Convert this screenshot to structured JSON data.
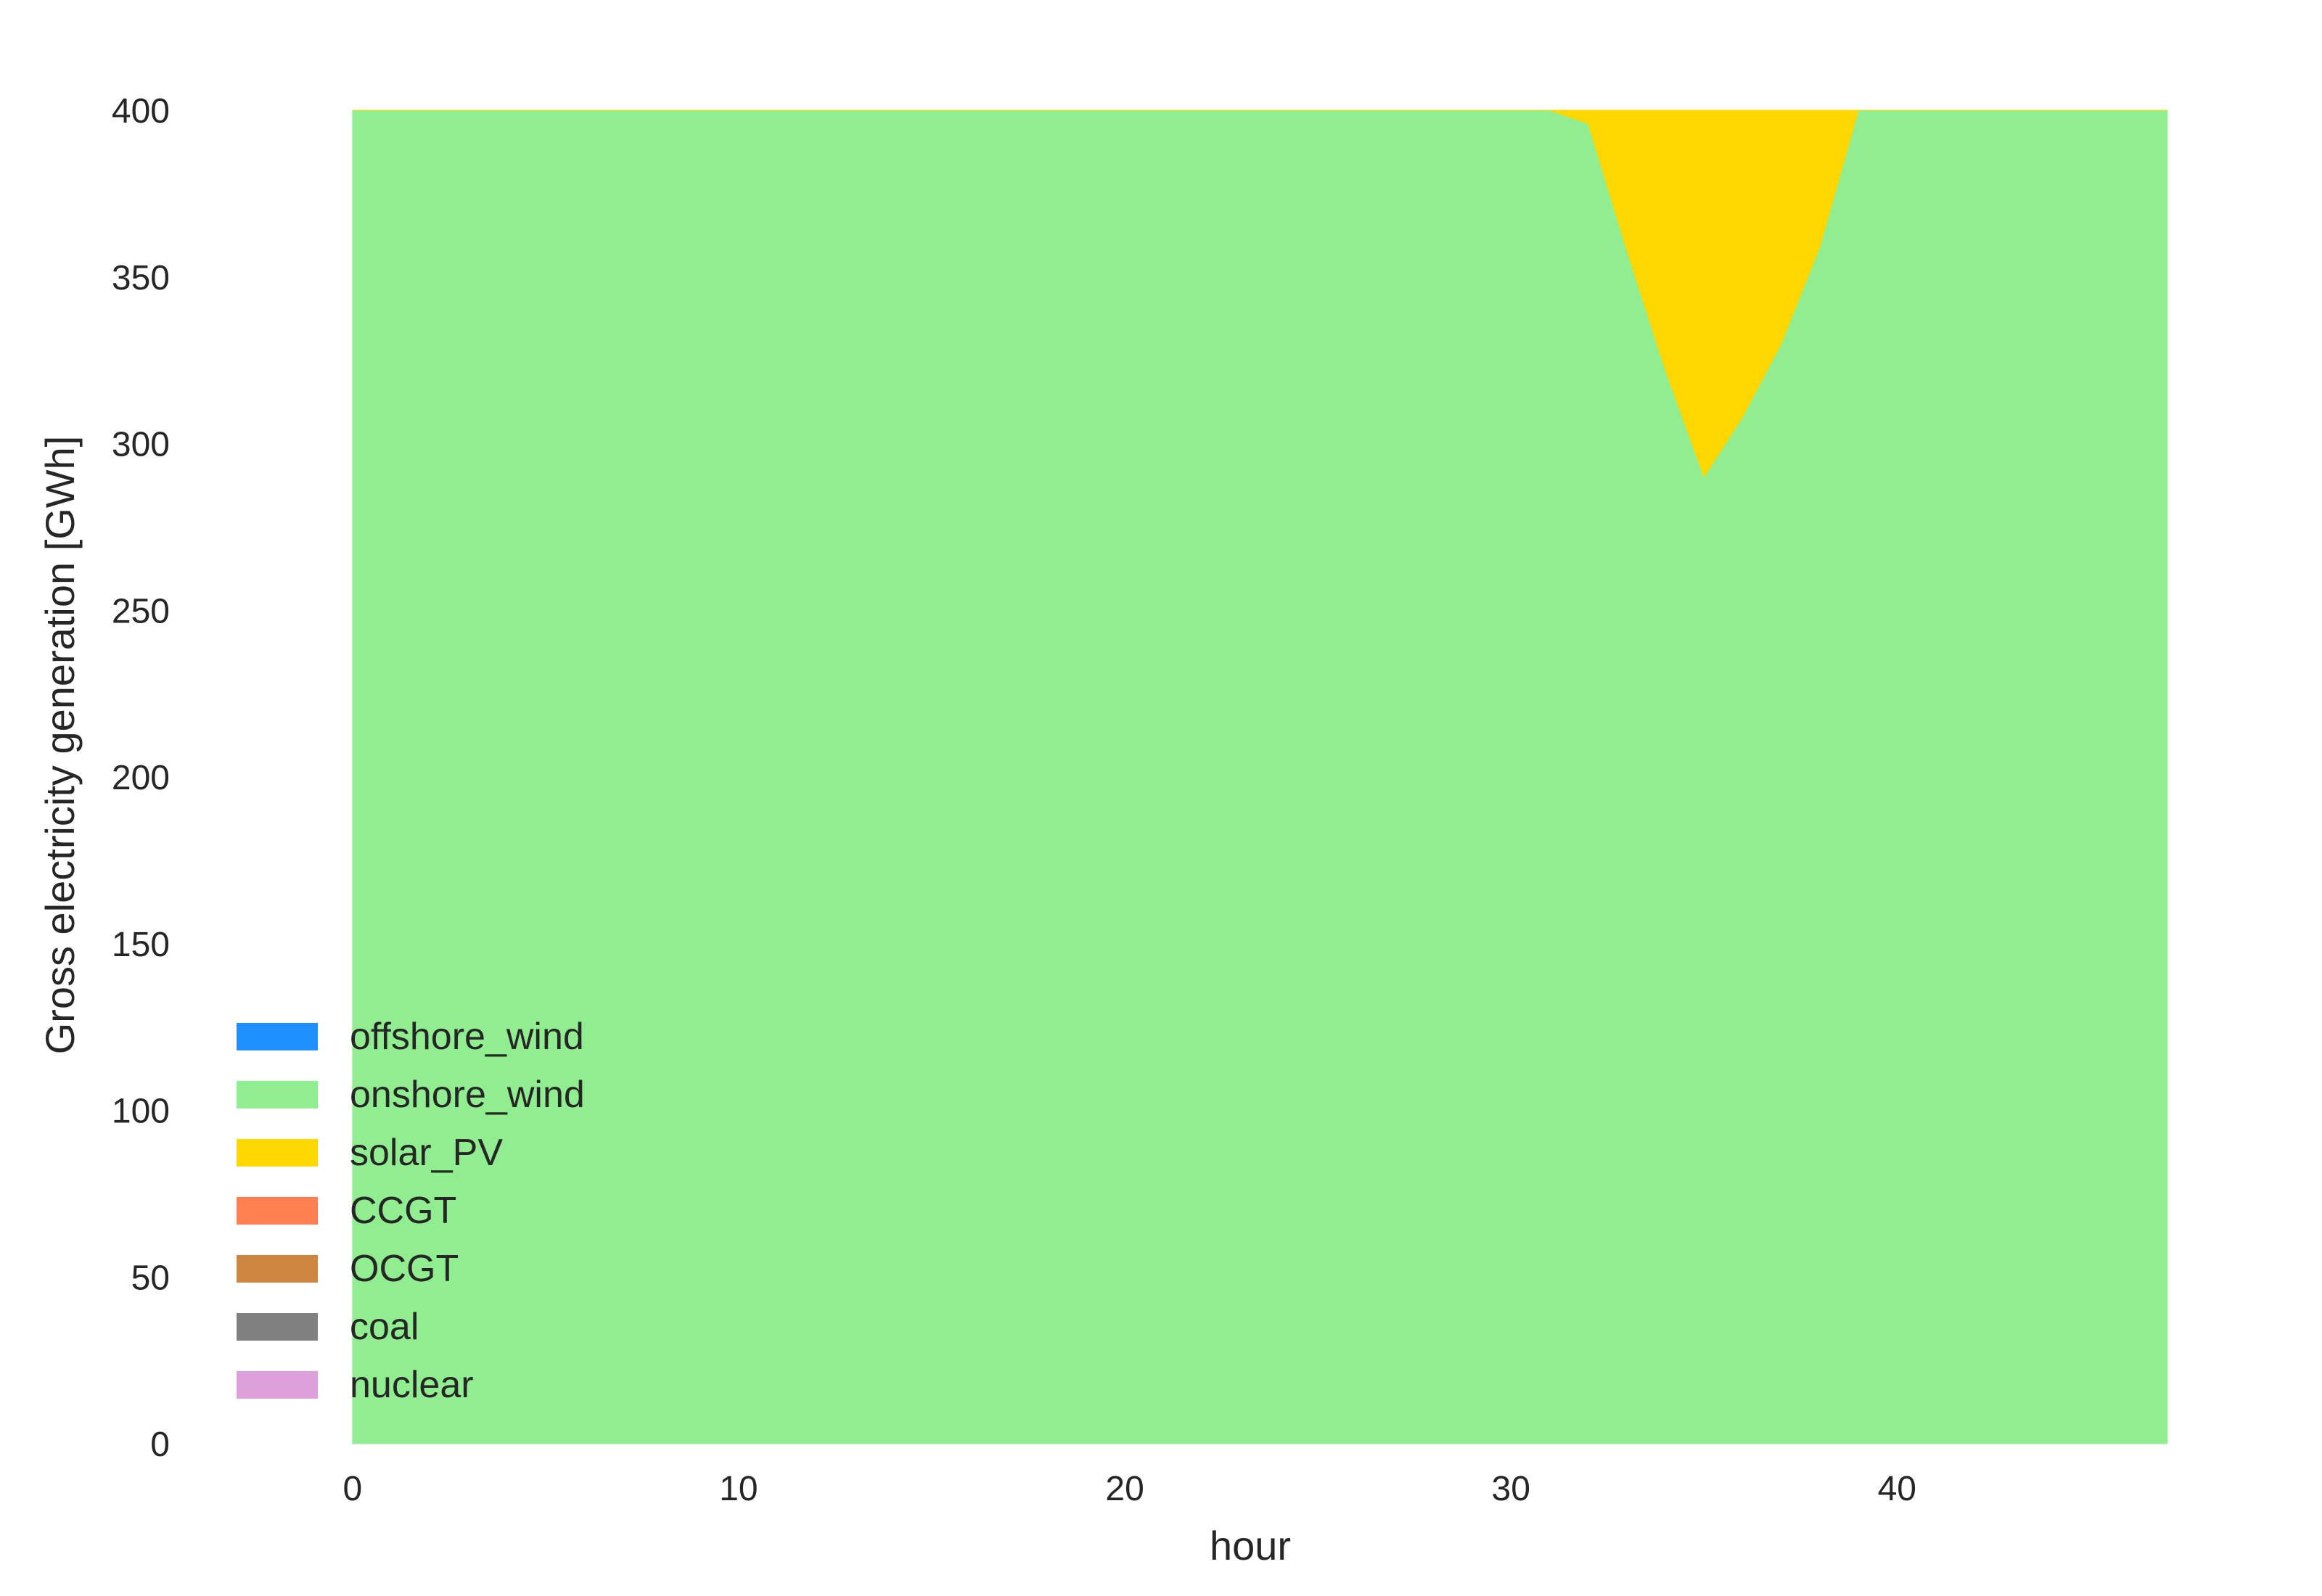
{
  "chart_data": {
    "type": "area",
    "stacked": true,
    "title": "",
    "xlabel": "hour",
    "ylabel": "Gross electricity generation [GWh]",
    "xlim": [
      0,
      47
    ],
    "ylim": [
      0,
      400
    ],
    "xticks": [
      0,
      10,
      20,
      30,
      40
    ],
    "yticks": [
      0,
      50,
      100,
      150,
      200,
      250,
      300,
      350,
      400
    ],
    "grid": false,
    "legend_position": "lower-left",
    "x": [
      0,
      1,
      2,
      3,
      4,
      5,
      6,
      7,
      8,
      9,
      10,
      11,
      12,
      13,
      14,
      15,
      16,
      17,
      18,
      19,
      20,
      21,
      22,
      23,
      24,
      25,
      26,
      27,
      28,
      29,
      30,
      31,
      32,
      33,
      34,
      35,
      36,
      37,
      38,
      39,
      40,
      41,
      42,
      43,
      44,
      45,
      46,
      47
    ],
    "series": [
      {
        "name": "offshore_wind",
        "color": "#1E90FF",
        "values": [
          0,
          0,
          0,
          0,
          0,
          0,
          0,
          0,
          0,
          0,
          0,
          0,
          0,
          0,
          0,
          0,
          0,
          0,
          0,
          0,
          0,
          0,
          0,
          0,
          0,
          0,
          0,
          0,
          0,
          0,
          0,
          0,
          0,
          0,
          0,
          0,
          0,
          0,
          0,
          0,
          0,
          0,
          0,
          0,
          0,
          0,
          0,
          0
        ]
      },
      {
        "name": "onshore_wind",
        "color": "#90EE90",
        "values": [
          400,
          400,
          400,
          400,
          400,
          400,
          400,
          400,
          400,
          400,
          400,
          400,
          400,
          400,
          400,
          400,
          400,
          400,
          400,
          400,
          400,
          400,
          400,
          400,
          400,
          400,
          400,
          400,
          400,
          400,
          400,
          400,
          396,
          358,
          322,
          290,
          308,
          330,
          359,
          400,
          400,
          400,
          400,
          400,
          400,
          400,
          400,
          400
        ]
      },
      {
        "name": "solar_PV",
        "color": "#FFD700",
        "values": [
          0,
          0,
          0,
          0,
          0,
          0,
          0,
          0,
          0,
          0,
          0,
          0,
          0,
          0,
          0,
          0,
          0,
          0,
          0,
          0,
          0,
          0,
          0,
          0,
          0,
          0,
          0,
          0,
          0,
          0,
          0,
          0,
          4,
          42,
          78,
          110,
          92,
          70,
          41,
          0,
          0,
          0,
          0,
          0,
          0,
          0,
          0,
          0
        ]
      },
      {
        "name": "CCGT",
        "color": "#FF7F50",
        "values": [
          0,
          0,
          0,
          0,
          0,
          0,
          0,
          0,
          0,
          0,
          0,
          0,
          0,
          0,
          0,
          0,
          0,
          0,
          0,
          0,
          0,
          0,
          0,
          0,
          0,
          0,
          0,
          0,
          0,
          0,
          0,
          0,
          0,
          0,
          0,
          0,
          0,
          0,
          0,
          0,
          0,
          0,
          0,
          0,
          0,
          0,
          0,
          0
        ]
      },
      {
        "name": "OCGT",
        "color": "#CD853F",
        "values": [
          0,
          0,
          0,
          0,
          0,
          0,
          0,
          0,
          0,
          0,
          0,
          0,
          0,
          0,
          0,
          0,
          0,
          0,
          0,
          0,
          0,
          0,
          0,
          0,
          0,
          0,
          0,
          0,
          0,
          0,
          0,
          0,
          0,
          0,
          0,
          0,
          0,
          0,
          0,
          0,
          0,
          0,
          0,
          0,
          0,
          0,
          0,
          0
        ]
      },
      {
        "name": "coal",
        "color": "#808080",
        "values": [
          0,
          0,
          0,
          0,
          0,
          0,
          0,
          0,
          0,
          0,
          0,
          0,
          0,
          0,
          0,
          0,
          0,
          0,
          0,
          0,
          0,
          0,
          0,
          0,
          0,
          0,
          0,
          0,
          0,
          0,
          0,
          0,
          0,
          0,
          0,
          0,
          0,
          0,
          0,
          0,
          0,
          0,
          0,
          0,
          0,
          0,
          0,
          0
        ]
      },
      {
        "name": "nuclear",
        "color": "#DDA0DD",
        "values": [
          0,
          0,
          0,
          0,
          0,
          0,
          0,
          0,
          0,
          0,
          0,
          0,
          0,
          0,
          0,
          0,
          0,
          0,
          0,
          0,
          0,
          0,
          0,
          0,
          0,
          0,
          0,
          0,
          0,
          0,
          0,
          0,
          0,
          0,
          0,
          0,
          0,
          0,
          0,
          0,
          0,
          0,
          0,
          0,
          0,
          0,
          0,
          0
        ]
      }
    ]
  }
}
